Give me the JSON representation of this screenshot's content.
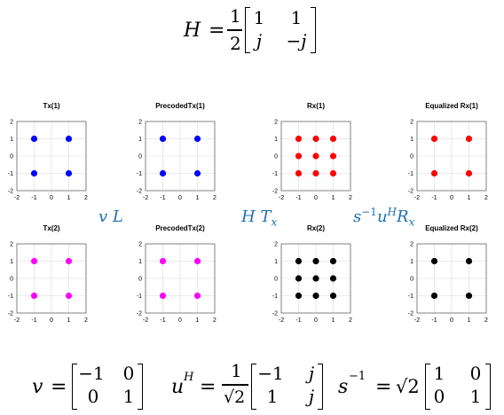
{
  "equations": {
    "h": {
      "lhs": "H",
      "eq": "=",
      "num": "1",
      "den": "2",
      "cells": [
        "1",
        "1",
        "j",
        "−j"
      ]
    },
    "v": {
      "lhs": "v",
      "eq": "=",
      "cells": [
        "−1",
        "0",
        "0",
        "1"
      ]
    },
    "uh": {
      "lhs_base": "u",
      "lhs_sup": "H",
      "eq": "=",
      "num": "1",
      "den": "√2",
      "cells": [
        "−1",
        "j",
        "1",
        "j"
      ]
    },
    "sinv": {
      "lhs_base": "s",
      "lhs_sup": "−1",
      "eq": "=",
      "coef": "√2",
      "cells": [
        "1",
        "0",
        "0",
        "1"
      ]
    }
  },
  "annotations": {
    "vl": "v L",
    "htx_base": "H T",
    "htx_sub": "x",
    "su_base": "s",
    "su_sup1": "−1",
    "su_mid": "u",
    "su_sup2": "H",
    "su_end": "R",
    "su_sub": "x"
  },
  "chart_data": [
    {
      "type": "scatter",
      "title": "Tx(1)",
      "color": "#0000ff",
      "xlim": [
        -2,
        2
      ],
      "ylim": [
        -2,
        2
      ],
      "xticks": [
        "-2",
        "-1",
        "0",
        "1",
        "2"
      ],
      "yticks": [
        "2",
        "1",
        "0",
        "-1",
        "-2"
      ],
      "points": [
        [
          -1,
          1
        ],
        [
          1,
          1
        ],
        [
          -1,
          -1
        ],
        [
          1,
          -1
        ]
      ],
      "grid": true
    },
    {
      "type": "scatter",
      "title": "PrecodedTx(1)",
      "color": "#0000ff",
      "xlim": [
        -2,
        2
      ],
      "ylim": [
        -2,
        2
      ],
      "xticks": [
        "-2",
        "-1",
        "0",
        "1",
        "2"
      ],
      "yticks": [
        "2",
        "1",
        "0",
        "-1",
        "-2"
      ],
      "points": [
        [
          -1,
          1
        ],
        [
          1,
          1
        ],
        [
          -1,
          -1
        ],
        [
          1,
          -1
        ]
      ],
      "grid": true
    },
    {
      "type": "scatter",
      "title": "Rx(1)",
      "color": "#ff0000",
      "xlim": [
        -2,
        2
      ],
      "ylim": [
        -2,
        2
      ],
      "xticks": [
        "-2",
        "-1",
        "0",
        "1",
        "2"
      ],
      "yticks": [
        "2",
        "1",
        "0",
        "-1",
        "-2"
      ],
      "points": [
        [
          -1,
          1
        ],
        [
          0,
          1
        ],
        [
          1,
          1
        ],
        [
          -1,
          0
        ],
        [
          0,
          0
        ],
        [
          1,
          0
        ],
        [
          -1,
          -1
        ],
        [
          0,
          -1
        ],
        [
          1,
          -1
        ]
      ],
      "grid": true
    },
    {
      "type": "scatter",
      "title": "Equalized Rx(1)",
      "color": "#ff0000",
      "xlim": [
        -2,
        2
      ],
      "ylim": [
        -2,
        2
      ],
      "xticks": [
        "-2",
        "-1",
        "0",
        "1",
        "2"
      ],
      "yticks": [
        "2",
        "1",
        "0",
        "-1",
        "-2"
      ],
      "points": [
        [
          -1,
          1
        ],
        [
          1,
          1
        ],
        [
          -1,
          -1
        ],
        [
          1,
          -1
        ]
      ],
      "grid": true
    },
    {
      "type": "scatter",
      "title": "Tx(2)",
      "color": "#ff00ff",
      "xlim": [
        -2,
        2
      ],
      "ylim": [
        -2,
        2
      ],
      "xticks": [
        "-2",
        "-1",
        "0",
        "1",
        "2"
      ],
      "yticks": [
        "2",
        "1",
        "0",
        "-1",
        "-2"
      ],
      "points": [
        [
          -1,
          1
        ],
        [
          1,
          1
        ],
        [
          -1,
          -1
        ],
        [
          1,
          -1
        ]
      ],
      "grid": true
    },
    {
      "type": "scatter",
      "title": "PrecodedTx(2)",
      "color": "#ff00ff",
      "xlim": [
        -2,
        2
      ],
      "ylim": [
        -2,
        2
      ],
      "xticks": [
        "-2",
        "-1",
        "0",
        "1",
        "2"
      ],
      "yticks": [
        "2",
        "1",
        "0",
        "-1",
        "-2"
      ],
      "points": [
        [
          -1,
          1
        ],
        [
          1,
          1
        ],
        [
          -1,
          -1
        ],
        [
          1,
          -1
        ]
      ],
      "grid": true
    },
    {
      "type": "scatter",
      "title": "Rx(2)",
      "color": "#000000",
      "xlim": [
        -2,
        2
      ],
      "ylim": [
        -2,
        2
      ],
      "xticks": [
        "-2",
        "-1",
        "0",
        "1",
        "2"
      ],
      "yticks": [
        "2",
        "1",
        "0",
        "-1",
        "-2"
      ],
      "points": [
        [
          -1,
          1
        ],
        [
          0,
          1
        ],
        [
          1,
          1
        ],
        [
          -1,
          0
        ],
        [
          0,
          0
        ],
        [
          1,
          0
        ],
        [
          -1,
          -1
        ],
        [
          0,
          -1
        ],
        [
          1,
          -1
        ]
      ],
      "grid": true
    },
    {
      "type": "scatter",
      "title": "Equalized Rx(2)",
      "color": "#000000",
      "xlim": [
        -2,
        2
      ],
      "ylim": [
        -2,
        2
      ],
      "xticks": [
        "-2",
        "-1",
        "0",
        "1",
        "2"
      ],
      "yticks": [
        "2",
        "1",
        "0",
        "-1",
        "-2"
      ],
      "points": [
        [
          -1,
          1
        ],
        [
          1,
          1
        ],
        [
          -1,
          -1
        ],
        [
          1,
          -1
        ]
      ],
      "grid": true
    }
  ]
}
